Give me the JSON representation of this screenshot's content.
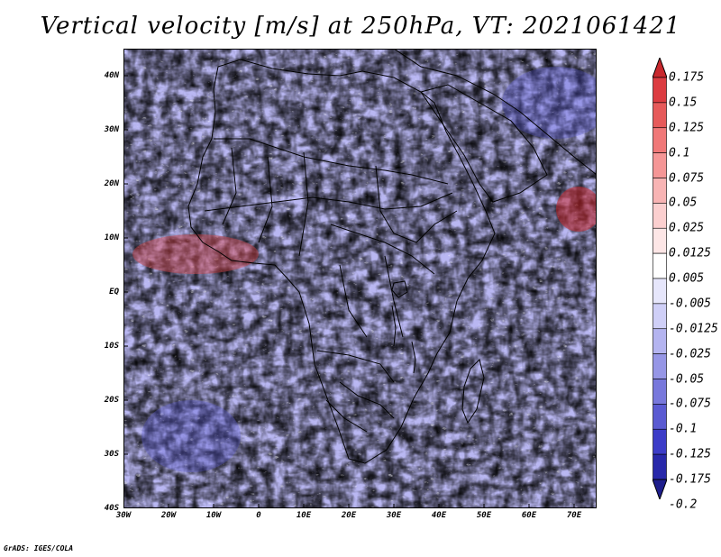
{
  "title": "Vertical velocity [m/s] at 250hPa, VT: 2021061421",
  "credit": "GrADS: IGES/COLA",
  "map": {
    "latitude_labels": [
      "40N",
      "30N",
      "20N",
      "10N",
      "EQ",
      "10S",
      "20S",
      "30S",
      "40S"
    ],
    "latitude_values": [
      40,
      30,
      20,
      10,
      0,
      -10,
      -20,
      -30,
      -40
    ],
    "longitude_labels": [
      "30W",
      "20W",
      "10W",
      "0",
      "10E",
      "20E",
      "30E",
      "40E",
      "50E",
      "60E",
      "70E"
    ],
    "longitude_values": [
      -30,
      -20,
      -10,
      0,
      10,
      20,
      30,
      40,
      50,
      60,
      70
    ],
    "lon_range": [
      -30,
      75
    ],
    "lat_range": [
      -40,
      45
    ]
  },
  "colorbar": {
    "labels": [
      "0.175",
      "0.15",
      "0.125",
      "0.1",
      "0.075",
      "0.05",
      "0.025",
      "0.0125",
      "0.005",
      "-0.005",
      "-0.0125",
      "-0.025",
      "-0.05",
      "-0.075",
      "-0.1",
      "-0.125",
      "-0.175",
      "-0.2"
    ],
    "colors": [
      "#c8282d",
      "#dc3c41",
      "#e65a5a",
      "#f07878",
      "#f59696",
      "#f8b4b4",
      "#fbcfcf",
      "#fde6e6",
      "#ffffff",
      "#e6e6fb",
      "#cfcff7",
      "#b4b4f0",
      "#9696e6",
      "#7878dc",
      "#5a5ad2",
      "#3c3cc8",
      "#2828aa",
      "#1e1e8c"
    ]
  }
}
